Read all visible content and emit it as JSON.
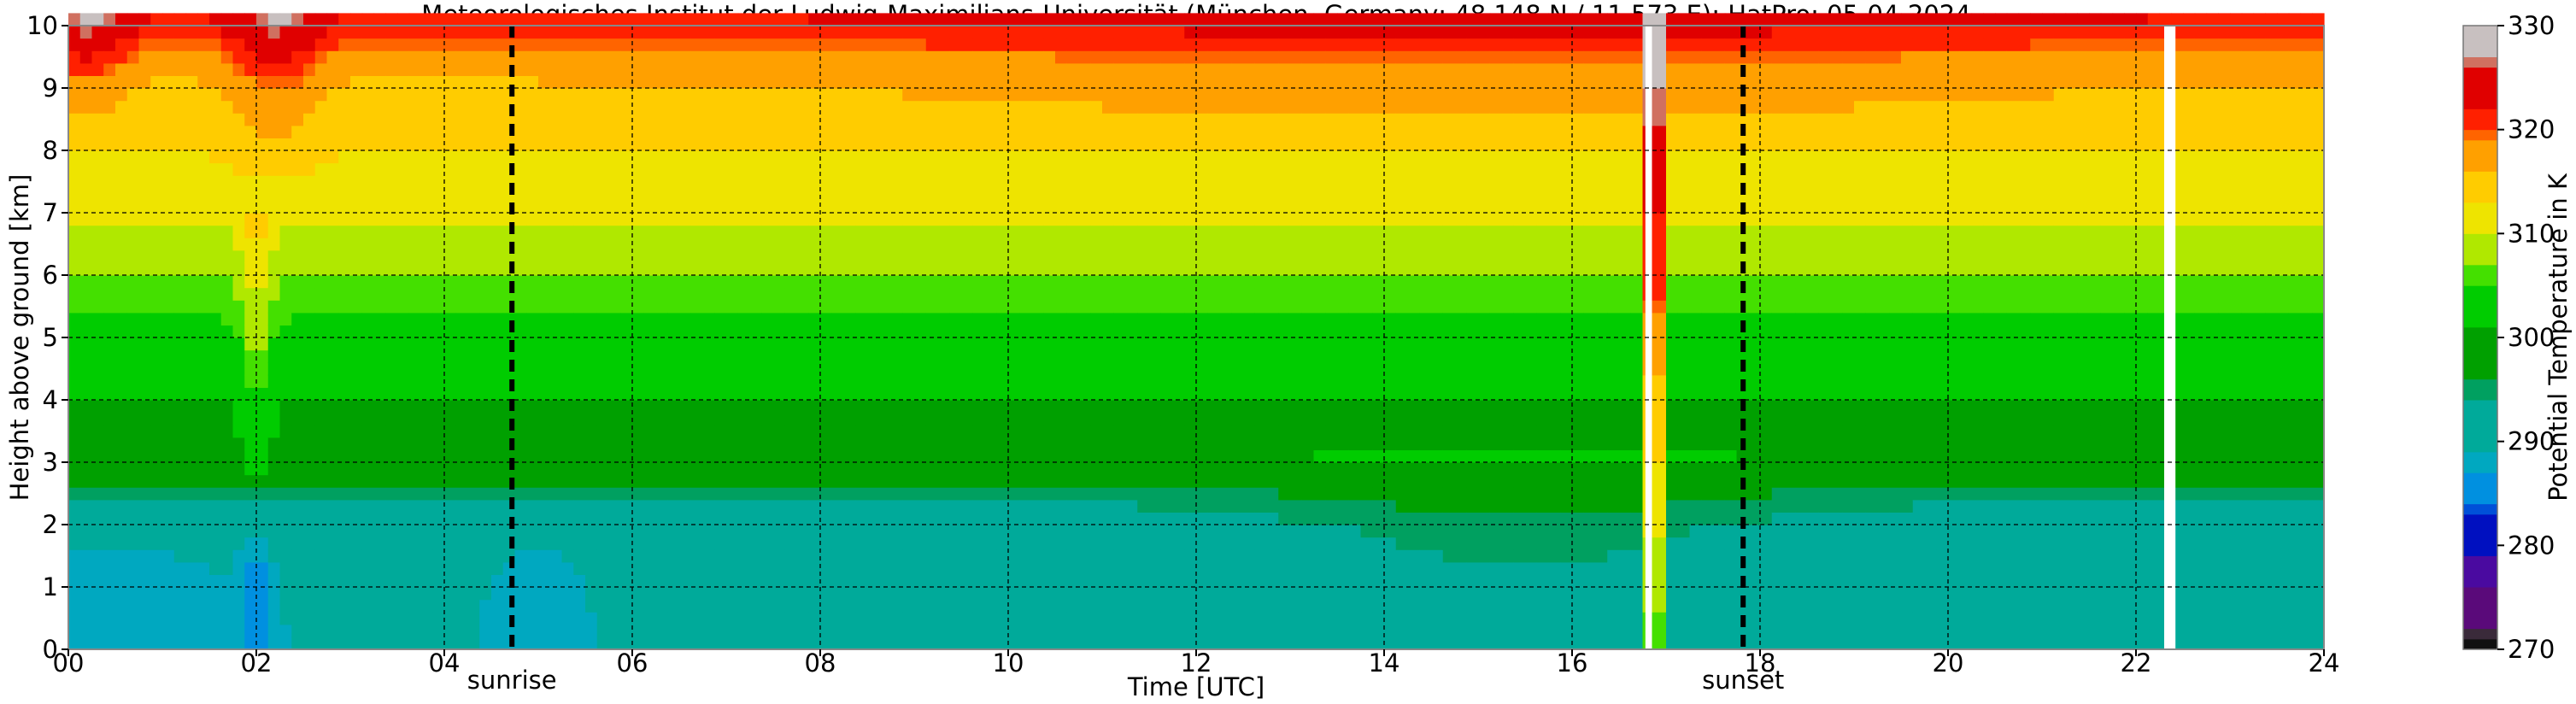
{
  "chart_data": {
    "type": "heatmap",
    "title": "Meteorologisches Institut der Ludwig-Maximilians-Universität (München, Germany; 48.148 N / 11.573 E):    HatPro: 05-04-2024",
    "xlabel": "Time [UTC]",
    "ylabel": "Height above ground [km]",
    "xlim": [
      0,
      24
    ],
    "ylim": [
      0,
      10
    ],
    "x_ticks": [
      "00",
      "02",
      "04",
      "06",
      "08",
      "10",
      "12",
      "14",
      "16",
      "18",
      "20",
      "22",
      "24"
    ],
    "y_ticks": [
      "0",
      "1",
      "2",
      "3",
      "4",
      "5",
      "6",
      "7",
      "8",
      "9",
      "10"
    ],
    "grid": true,
    "colorbar": {
      "label": "Potential Temperature in K",
      "range": [
        270,
        330
      ],
      "ticks": [
        "270",
        "280",
        "290",
        "300",
        "310",
        "320",
        "330"
      ],
      "colors": [
        {
          "from": 270,
          "to": 271,
          "color": "#101010"
        },
        {
          "from": 271,
          "to": 272,
          "color": "#3a2a3a"
        },
        {
          "from": 272,
          "to": 276,
          "color": "#5a0a7a"
        },
        {
          "from": 276,
          "to": 279,
          "color": "#4a0aa0"
        },
        {
          "from": 279,
          "to": 283,
          "color": "#0010c0"
        },
        {
          "from": 283,
          "to": 284,
          "color": "#0050d8"
        },
        {
          "from": 284,
          "to": 287,
          "color": "#0090e0"
        },
        {
          "from": 287,
          "to": 289,
          "color": "#00a8c0"
        },
        {
          "from": 289,
          "to": 294,
          "color": "#00aa9a"
        },
        {
          "from": 294,
          "to": 296,
          "color": "#00a060"
        },
        {
          "from": 296,
          "to": 301,
          "color": "#00a000"
        },
        {
          "from": 301,
          "to": 305,
          "color": "#00cc00"
        },
        {
          "from": 305,
          "to": 307,
          "color": "#44e000"
        },
        {
          "from": 307,
          "to": 310,
          "color": "#b0e800"
        },
        {
          "from": 310,
          "to": 313,
          "color": "#eee400"
        },
        {
          "from": 313,
          "to": 316,
          "color": "#ffcc00"
        },
        {
          "from": 316,
          "to": 319,
          "color": "#ffa000"
        },
        {
          "from": 319,
          "to": 320,
          "color": "#ff6400"
        },
        {
          "from": 320,
          "to": 322,
          "color": "#ff2000"
        },
        {
          "from": 322,
          "to": 326,
          "color": "#e00000"
        },
        {
          "from": 326,
          "to": 327,
          "color": "#d07060"
        },
        {
          "from": 327,
          "to": 330,
          "color": "#c8c0c0"
        }
      ]
    },
    "vertical_markers": [
      {
        "label": "sunrise",
        "x": 4.72
      },
      {
        "label": "sunset",
        "x": 17.82
      }
    ],
    "data_gaps": [
      {
        "x_start": 16.78,
        "x_end": 16.85
      },
      {
        "x_start": 22.3,
        "x_end": 22.42
      }
    ],
    "profile_stops": [
      {
        "height": 0,
        "theta": 290
      },
      {
        "height": 1,
        "theta": 290.5
      },
      {
        "height": 2,
        "theta": 292
      },
      {
        "height": 2.6,
        "theta": 295
      },
      {
        "height": 3,
        "theta": 299
      },
      {
        "height": 4,
        "theta": 301
      },
      {
        "height": 5,
        "theta": 304
      },
      {
        "height": 6,
        "theta": 307
      },
      {
        "height": 7,
        "theta": 311
      },
      {
        "height": 8,
        "theta": 313
      },
      {
        "height": 9,
        "theta": 315
      },
      {
        "height": 9.6,
        "theta": 318
      },
      {
        "height": 10,
        "theta": 321
      }
    ],
    "profile_16_8_stops": [
      {
        "height": 0,
        "theta": 305
      },
      {
        "height": 1,
        "theta": 308
      },
      {
        "height": 2.5,
        "theta": 312
      },
      {
        "height": 3.7,
        "theta": 314
      },
      {
        "height": 5,
        "theta": 318
      },
      {
        "height": 6,
        "theta": 321
      },
      {
        "height": 8,
        "theta": 323
      },
      {
        "height": 8.5,
        "theta": 326
      },
      {
        "height": 10,
        "theta": 329
      }
    ]
  }
}
